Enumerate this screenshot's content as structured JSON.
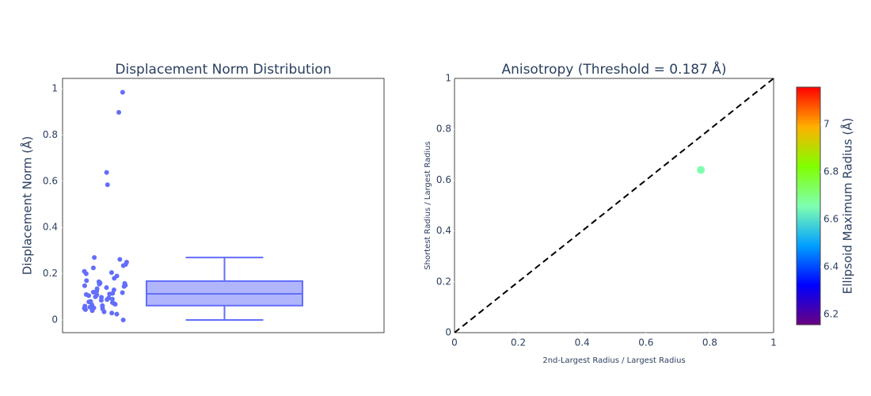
{
  "chart_data": [
    {
      "type": "box",
      "title": "Displacement Norm Distribution",
      "ylabel": "Displacement Norm (Å)",
      "color": "#636efa",
      "values": [
        0.985,
        0.898,
        0.638,
        0.585,
        0.27,
        0.262,
        0.25,
        0.24,
        0.235,
        0.225,
        0.21,
        0.205,
        0.2,
        0.19,
        0.18,
        0.17,
        0.165,
        0.16,
        0.158,
        0.155,
        0.15,
        0.148,
        0.145,
        0.14,
        0.135,
        0.13,
        0.125,
        0.12,
        0.118,
        0.115,
        0.112,
        0.11,
        0.108,
        0.105,
        0.1,
        0.098,
        0.095,
        0.09,
        0.088,
        0.085,
        0.08,
        0.078,
        0.075,
        0.07,
        0.068,
        0.065,
        0.062,
        0.06,
        0.058,
        0.055,
        0.052,
        0.05,
        0.048,
        0.045,
        0.04,
        0.035,
        0.03,
        0.025,
        0
      ],
      "box": {
        "lower_fence": 0,
        "q1": 0.062,
        "median": 0.113,
        "q3": 0.168,
        "upper_fence": 0.27
      },
      "ylim": [
        -0.055,
        1.045
      ],
      "yticks": [
        0,
        0.2,
        0.4,
        0.6,
        0.8,
        1
      ]
    },
    {
      "type": "scatter",
      "title": "Anisotropy (Threshold = 0.187 Å)",
      "xlabel": "2nd-Largest Radius / Largest Radius",
      "ylabel": "Shortest Radius / Largest Radius",
      "x": [
        0.772
      ],
      "values": [
        0.64
      ],
      "color_values": [
        6.657
      ],
      "reference_line": {
        "x": [
          0,
          1
        ],
        "y": [
          0,
          1
        ],
        "color": "#000000",
        "dash": true
      },
      "xlim": [
        0,
        1
      ],
      "ylim": [
        0,
        1
      ],
      "xticks": [
        0,
        0.2,
        0.4,
        0.6,
        0.8,
        1
      ],
      "yticks": [
        0,
        0.2,
        0.4,
        0.6,
        0.8,
        1
      ],
      "colorbar": {
        "title": "Ellipsoid Maximum Radius (Å)",
        "lim": [
          6.157,
          7.157
        ],
        "ticks": [
          6.2,
          6.4,
          6.6,
          6.8,
          7
        ],
        "colorscale": [
          "#6a0080",
          "#0000ff",
          "#00a0ff",
          "#80ffb0",
          "#80ff00",
          "#ffb000",
          "#ff0000"
        ]
      }
    }
  ]
}
